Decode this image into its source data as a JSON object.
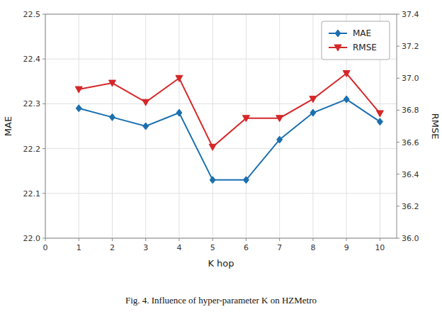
{
  "chart_data": {
    "type": "line",
    "caption": "Fig. 4. Influence of hyper-parameter K on HZMetro",
    "x_label": "K hop",
    "y_label": "MAE",
    "y2_label": "RMSE",
    "x": [
      1,
      2,
      3,
      4,
      5,
      6,
      7,
      8,
      9,
      10
    ],
    "series": [
      {
        "name": "MAE",
        "color": "#1a6faf",
        "marker": "diamond",
        "values": [
          22.29,
          22.27,
          22.25,
          22.28,
          22.13,
          22.13,
          22.22,
          22.28,
          22.31,
          22.26
        ]
      },
      {
        "name": "RMSE",
        "color": "#d62728",
        "marker": "triangle-down",
        "axis": "y2",
        "values": [
          36.93,
          36.97,
          36.85,
          37.0,
          36.57,
          36.75,
          36.75,
          36.87,
          37.03,
          36.78
        ]
      }
    ],
    "xlim": [
      0,
      10.5
    ],
    "xticks": [
      0,
      1,
      2,
      3,
      4,
      5,
      6,
      7,
      8,
      9,
      10
    ],
    "ylim": [
      22.0,
      22.5
    ],
    "yticks": [
      {
        "value": 22.0,
        "label": "22.0"
      },
      22.1,
      22.2,
      22.3,
      22.4,
      22.5
    ],
    "y2lim": [
      36.0,
      37.4
    ],
    "y2ticks": [
      {
        "value": 36.0,
        "label": "36.0"
      },
      36.2,
      36.4,
      36.6,
      36.8,
      {
        "value": 37.0,
        "label": "37.0"
      },
      37.2,
      37.4
    ],
    "grid": true,
    "legend": "upper right"
  }
}
